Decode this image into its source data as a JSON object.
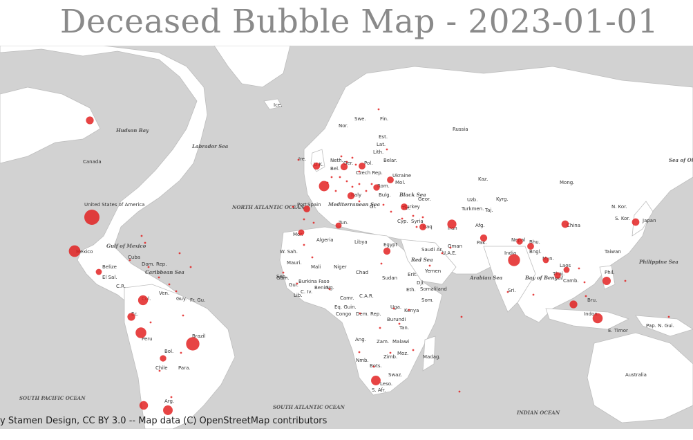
{
  "title": "Deceased Bubble Map - 2023-01-01",
  "attribution": "y Stamen Design, CC BY 3.0 -- Map data (C) OpenStreetMap contributors",
  "colors": {
    "bubble": "#e21b1b",
    "ocean": "#d2d2d2",
    "land": "#ffffff",
    "title": "#8a8a8a"
  },
  "country_labels": [
    "Canada",
    "United States of America",
    "Mexico",
    "Cuba",
    "Dom. Rep.",
    "Belize",
    "El Sal.",
    "C.R.",
    "Ven.",
    "Guy.",
    "Fr. Gu.",
    "Col.",
    "Ec.",
    "Peru",
    "Brazil",
    "Bol.",
    "Para.",
    "Chile",
    "Arg.",
    "Nor.",
    "Swe.",
    "Fin.",
    "Est.",
    "Lat.",
    "Lith.",
    "Ire.",
    "U.K.",
    "Neth.",
    "Bel.",
    "Ger.",
    "Pol.",
    "Czech Rep.",
    "Belar.",
    "Ukraine",
    "Mol.",
    "Rom.",
    "Bulg.",
    "Gr.",
    "Italy",
    "Port.",
    "Spain",
    "Russia",
    "Geor.",
    "Turkey",
    "Tur.",
    "Cyp.",
    "Syria",
    "Iraq",
    "Iran",
    "Turkmen.",
    "Uzb.",
    "Taj.",
    "Kaz.",
    "Kyrg.",
    "Afg.",
    "Pak.",
    "Nepal",
    "Bhu.",
    "Bngl.",
    "India",
    "Sri.",
    "Mong.",
    "China",
    "N. Kor.",
    "S. Kor.",
    "Japan",
    "Taiwan",
    "Myn.",
    "Laos",
    "Thai.",
    "Camb.",
    "Phil.",
    "Bru.",
    "Indon.",
    "E. Timor",
    "Pap. N. Gui.",
    "Australia",
    "Mor.",
    "Algeria",
    "Tun.",
    "Libya",
    "Egypt",
    "W. Sah.",
    "Mali",
    "Niger",
    "Chad",
    "Sudan",
    "Erit.",
    "Dji.",
    "Somaliland",
    "Eth.",
    "Som.",
    "Mauri.",
    "Sen.",
    "Gam.",
    "Gui.",
    "Burkina Faso",
    "Benin",
    "Ng.",
    "Lib.",
    "C. Iv.",
    "Camr.",
    "C.A.R.",
    "Eq. Guin.",
    "Congo",
    "Dem. Rep.",
    "Uga.",
    "Kenya",
    "Burundi",
    "Tan.",
    "Ang.",
    "Zam.",
    "Malawi",
    "Zimb.",
    "Moz.",
    "Madag.",
    "Nmb.",
    "Bots.",
    "Swaz.",
    "Leso.",
    "S. Afr.",
    "Saudi Ar.",
    "Yemen",
    "Oman",
    "U.A.E.",
    "Ice."
  ],
  "sea_labels": [
    "Hudson Bay",
    "Labrador Sea",
    "NORTH ATLANTIC OCEAN",
    "Gulf of Mexico",
    "Caribbean Sea",
    "SOUTH PACIFIC OCEAN",
    "SOUTH ATLANTIC OCEAN",
    "Mediterranean Sea",
    "Black Sea",
    "Red Sea",
    "Arabian Sea",
    "Bay of Bengal",
    "Philippine Sea",
    "Sea of Okhotsk",
    "INDIAN OCEAN"
  ],
  "chart_data": {
    "type": "scatter",
    "title": "Deceased Bubble Map - 2023-01-01",
    "note": "Bubble sizes relative; largest = United States of America",
    "series": [
      {
        "name": "deceased",
        "points": [
          {
            "label": "United States of America",
            "size": 1.0
          },
          {
            "label": "Brazil",
            "size": 0.77
          },
          {
            "label": "India",
            "size": 0.62
          },
          {
            "label": "Mexico",
            "size": 0.58
          },
          {
            "label": "Peru",
            "size": 0.5
          },
          {
            "label": "France",
            "size": 0.46
          },
          {
            "label": "Indonesia",
            "size": 0.44
          },
          {
            "label": "Colombia",
            "size": 0.42
          },
          {
            "label": "South Africa",
            "size": 0.4
          },
          {
            "label": "Argentina",
            "size": 0.4
          },
          {
            "label": "Iran",
            "size": 0.36
          },
          {
            "label": "Chile",
            "size": 0.32
          },
          {
            "label": "Philippines",
            "size": 0.3
          },
          {
            "label": "Canada",
            "size": 0.26
          },
          {
            "label": "Ecuador",
            "size": 0.26
          },
          {
            "label": "Malaysia",
            "size": 0.26
          },
          {
            "label": "Japan",
            "size": 0.24
          },
          {
            "label": "China",
            "size": 0.24
          },
          {
            "label": "Pakistan",
            "size": 0.22
          },
          {
            "label": "Egypt",
            "size": 0.22
          },
          {
            "label": "Iraq",
            "size": 0.2
          },
          {
            "label": "Bangladesh",
            "size": 0.2
          },
          {
            "label": "Nepal",
            "size": 0.18
          },
          {
            "label": "Ukraine",
            "size": 0.2
          },
          {
            "label": "Poland",
            "size": 0.2
          },
          {
            "label": "Germany",
            "size": 0.22
          },
          {
            "label": "Italy",
            "size": 0.22
          },
          {
            "label": "Spain",
            "size": 0.2
          },
          {
            "label": "United Kingdom",
            "size": 0.22
          },
          {
            "label": "Turkey",
            "size": 0.2
          },
          {
            "label": "Romania",
            "size": 0.18
          },
          {
            "label": "Tunisia",
            "size": 0.16
          },
          {
            "label": "Morocco",
            "size": 0.16
          },
          {
            "label": "Bolivia",
            "size": 0.18
          },
          {
            "label": "Guatemala",
            "size": 0.16
          },
          {
            "label": "Thailand",
            "size": 0.18
          },
          {
            "label": "Myanmar",
            "size": 0.16
          },
          {
            "label": "Vietnam",
            "size": 0.16
          }
        ]
      }
    ]
  }
}
